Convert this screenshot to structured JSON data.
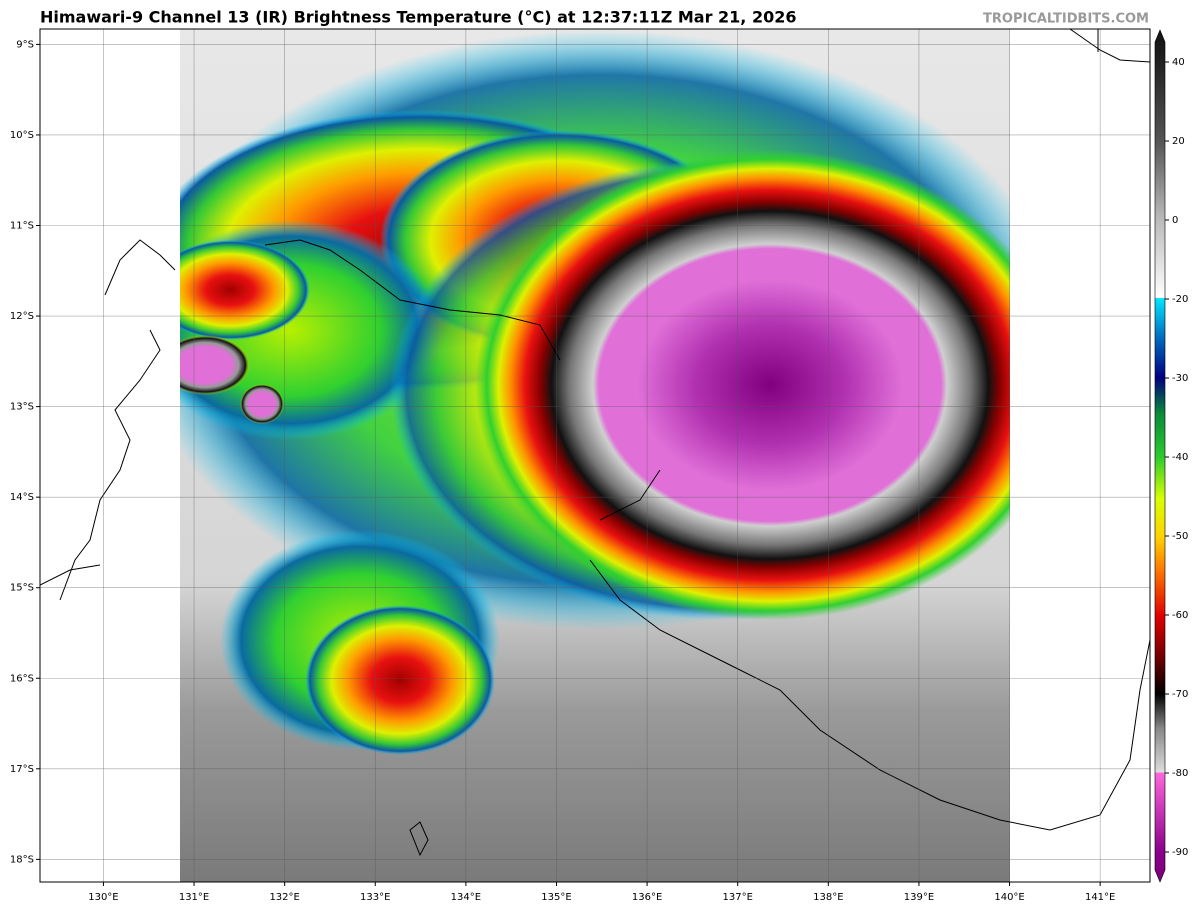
{
  "header": {
    "title": "Himawari-9 Channel 13 (IR) Brightness Temperature (°C) at 12:37:11Z Mar 21, 2026",
    "watermark": "TROPICALTIDBITS.COM"
  },
  "map": {
    "lonlim": [
      129.3,
      141.55
    ],
    "latlim": [
      -8.83,
      -18.25
    ],
    "lon_ticks": [
      {
        "value": 130,
        "label": "130°E"
      },
      {
        "value": 131,
        "label": "131°E"
      },
      {
        "value": 132,
        "label": "132°E"
      },
      {
        "value": 133,
        "label": "133°E"
      },
      {
        "value": 134,
        "label": "134°E"
      },
      {
        "value": 135,
        "label": "135°E"
      },
      {
        "value": 136,
        "label": "136°E"
      },
      {
        "value": 137,
        "label": "137°E"
      },
      {
        "value": 138,
        "label": "138°E"
      },
      {
        "value": 139,
        "label": "139°E"
      },
      {
        "value": 140,
        "label": "140°E"
      },
      {
        "value": 141,
        "label": "141°E"
      }
    ],
    "lat_ticks": [
      {
        "value": -9,
        "label": "9°S"
      },
      {
        "value": -10,
        "label": "10°S"
      },
      {
        "value": -11,
        "label": "11°S"
      },
      {
        "value": -12,
        "label": "12°S"
      },
      {
        "value": -13,
        "label": "13°S"
      },
      {
        "value": -14,
        "label": "14°S"
      },
      {
        "value": -15,
        "label": "15°S"
      },
      {
        "value": -16,
        "label": "16°S"
      },
      {
        "value": -17,
        "label": "17°S"
      },
      {
        "value": -18,
        "label": "18°S"
      }
    ],
    "grid": true
  },
  "colorbar": {
    "ticks": [
      40,
      20,
      0,
      -20,
      -30,
      -40,
      -50,
      -60,
      -70,
      -80,
      -90
    ]
  }
}
